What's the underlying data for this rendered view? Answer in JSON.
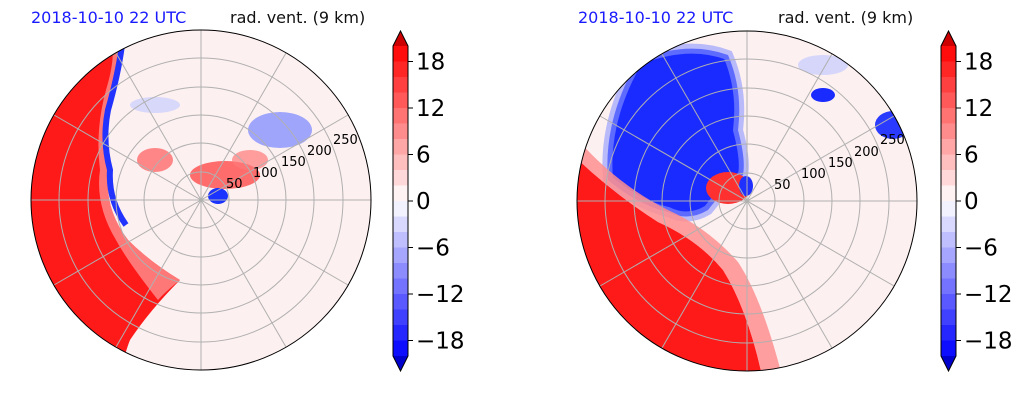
{
  "chart_data": [
    {
      "type": "heatmap",
      "projection": "polar",
      "title_left": "2018-10-10 22 UTC",
      "title_right": "rad. vent. (9 km)",
      "radial_ticks": [
        50,
        100,
        150,
        200,
        250
      ],
      "colorbar": {
        "ticks": [
          -18,
          -12,
          -6,
          0,
          6,
          12,
          18
        ],
        "range": [
          -20,
          20
        ],
        "extend": "both",
        "colormap": "bwr"
      },
      "grid": true,
      "panel": "left"
    },
    {
      "type": "heatmap",
      "projection": "polar",
      "title_left": "2018-10-10 22 UTC",
      "title_right": "rad. vent. (9 km)",
      "radial_ticks": [
        50,
        100,
        150,
        200,
        250
      ],
      "colorbar": {
        "ticks": [
          -18,
          -12,
          -6,
          0,
          6,
          12,
          18
        ],
        "range": [
          -20,
          20
        ],
        "extend": "both",
        "colormap": "bwr"
      },
      "grid": true,
      "panel": "right"
    }
  ],
  "colors": {
    "title_date": "#1a1aff",
    "positive": "#ff0000",
    "negative": "#0000ff",
    "neutral": "#fdf0f0"
  }
}
